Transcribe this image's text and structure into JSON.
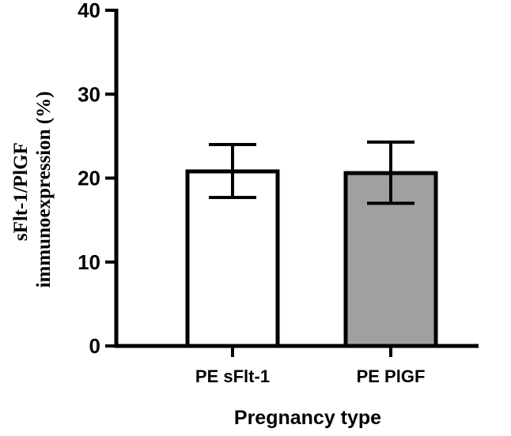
{
  "chart_data": {
    "type": "bar",
    "categories": [
      "PE sFlt-1",
      "PE PlGF"
    ],
    "values": [
      20.8,
      20.6
    ],
    "error_upper": [
      24.0,
      24.3
    ],
    "error_lower": [
      17.7,
      17.0
    ],
    "fill_colors": [
      "#ffffff",
      "#a0a0a0"
    ],
    "edge_color": "#000000",
    "xlabel": "Pregnancy type",
    "ylabel_lines": [
      "sFlt-1/PlGF",
      "immunoexpression (%)"
    ],
    "ylim": [
      0,
      40
    ],
    "yticks": [
      0,
      10,
      20,
      30,
      40
    ],
    "grid": false
  }
}
